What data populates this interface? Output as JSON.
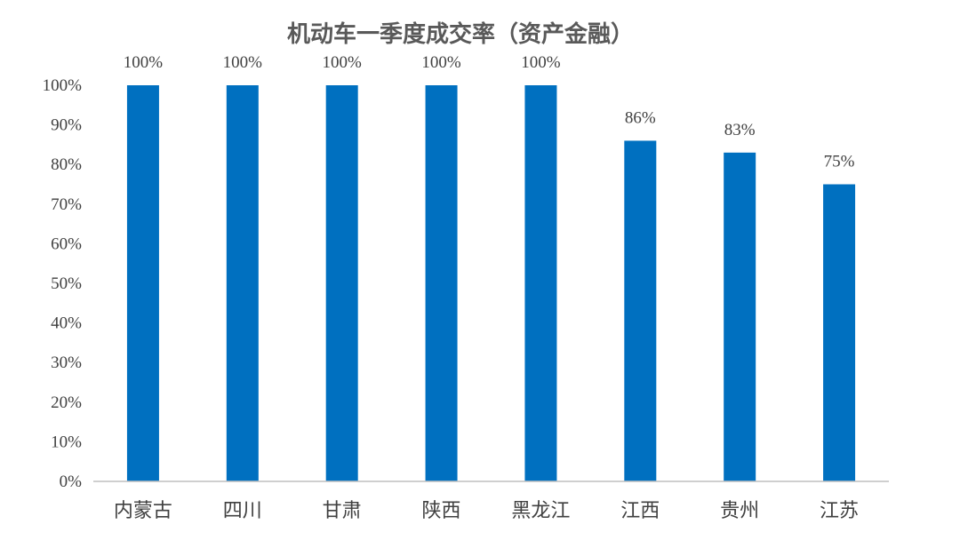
{
  "chart_data": {
    "type": "bar",
    "title": "机动车一季度成交率（资产金融）",
    "xlabel": "",
    "ylabel": "",
    "categories": [
      "内蒙古",
      "四川",
      "甘肃",
      "陕西",
      "黑龙江",
      "江西",
      "贵州",
      "江苏"
    ],
    "values": [
      100,
      100,
      100,
      100,
      100,
      86,
      83,
      75
    ],
    "data_labels": [
      "100%",
      "100%",
      "100%",
      "100%",
      "100%",
      "86%",
      "83%",
      "75%"
    ],
    "ylim": [
      0,
      100
    ],
    "yticks": [
      "0%",
      "10%",
      "20%",
      "30%",
      "40%",
      "50%",
      "60%",
      "70%",
      "80%",
      "90%",
      "100%"
    ],
    "grid": false,
    "legend": "none",
    "bar_color": "#0070c0"
  }
}
